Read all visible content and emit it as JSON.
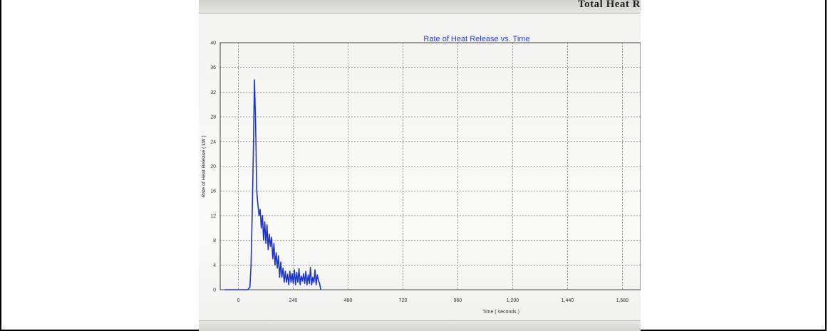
{
  "header": {
    "cropped_text": "Total Heat R"
  },
  "chart_data": {
    "type": "line",
    "title": "Rate of Heat Release vs. Time",
    "xlabel": "Time ( seconds )",
    "ylabel": "Rate of Heat Release ( kW )",
    "xlim": [
      -80,
      1760
    ],
    "ylim": [
      0,
      40
    ],
    "xticks": [
      0,
      240,
      480,
      720,
      960,
      1200,
      1440,
      1680
    ],
    "xtick_labels": [
      "0",
      "240",
      "480",
      "720",
      "960",
      "1,200",
      "1,440",
      "1,680"
    ],
    "yticks": [
      0,
      4,
      8,
      12,
      16,
      20,
      24,
      28,
      32,
      36,
      40
    ],
    "ytick_labels": [
      "0",
      "4",
      "8",
      "12",
      "16",
      "20",
      "24",
      "28",
      "32",
      "36",
      "40"
    ],
    "grid": true,
    "line_color": "#1f35c8",
    "series": [
      {
        "x": [
          -60,
          20,
          40,
          50,
          55,
          60,
          65,
          70,
          75,
          80,
          85,
          90,
          95,
          100,
          105,
          110,
          115,
          120,
          125,
          130,
          135,
          140,
          145,
          150,
          155,
          160,
          165,
          170,
          175,
          180,
          185,
          190,
          195,
          200,
          205,
          210,
          215,
          220,
          225,
          230,
          235,
          240,
          245,
          250,
          255,
          260,
          265,
          270,
          275,
          280,
          285,
          290,
          295,
          300,
          305,
          310,
          315,
          320,
          325,
          330,
          335,
          340,
          345,
          350,
          355,
          360
        ],
        "y": [
          0,
          0,
          0,
          0.4,
          4,
          12,
          22,
          34,
          27,
          16,
          13.8,
          12,
          13,
          10,
          12,
          8,
          11,
          7.5,
          10.5,
          6.5,
          9,
          7,
          8.5,
          5,
          7.5,
          4,
          6,
          3.5,
          5.5,
          2,
          4.5,
          2,
          3.5,
          1.2,
          3,
          1.2,
          2.5,
          0.8,
          3,
          1.2,
          2.6,
          1,
          3.2,
          0.8,
          2.8,
          1.2,
          3.4,
          0.8,
          2.2,
          1.4,
          2.6,
          1,
          3,
          0.8,
          2.4,
          1,
          3.6,
          0.8,
          2,
          1.2,
          3.2,
          0.8,
          2.4,
          1.5,
          1,
          0
        ]
      }
    ]
  }
}
